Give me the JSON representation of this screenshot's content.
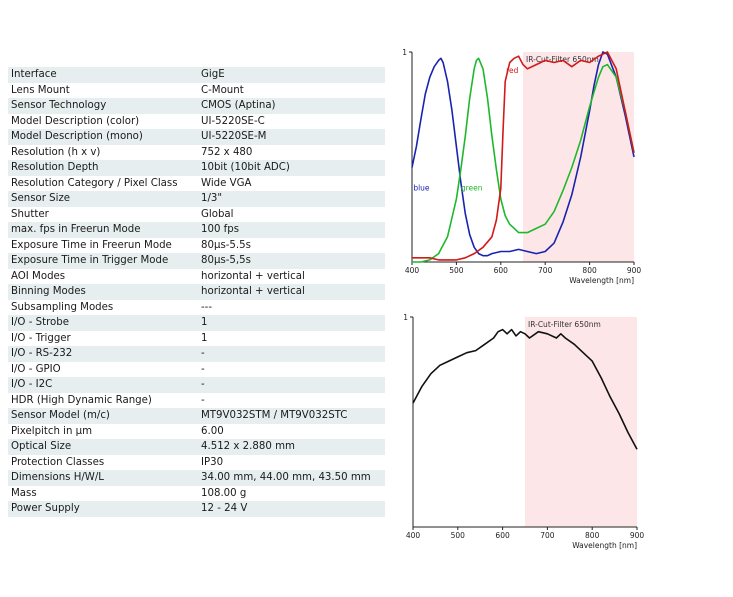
{
  "specs": [
    {
      "label": "Interface",
      "value": "GigE"
    },
    {
      "label": "Lens Mount",
      "value": "C-Mount"
    },
    {
      "label": "Sensor Technology",
      "value": "CMOS (Aptina)"
    },
    {
      "label": "Model Description (color)",
      "value": "UI-5220SE-C"
    },
    {
      "label": "Model Description (mono)",
      "value": "UI-5220SE-M"
    },
    {
      "label": "Resolution (h x v)",
      "value": "752 x 480"
    },
    {
      "label": "Resolution Depth",
      "value": "10bit (10bit ADC)"
    },
    {
      "label": "Resolution Category / Pixel Class",
      "value": "Wide VGA"
    },
    {
      "label": "Sensor Size",
      "value": "1/3\""
    },
    {
      "label": "Shutter",
      "value": "Global"
    },
    {
      "label": "max. fps in Freerun Mode",
      "value": "100 fps"
    },
    {
      "label": "Exposure Time in Freerun Mode",
      "value": "80µs-5.5s"
    },
    {
      "label": "Exposure Time in Trigger Mode",
      "value": "80µs-5,5s"
    },
    {
      "label": "AOI Modes",
      "value": "horizontal + vertical"
    },
    {
      "label": "Binning Modes",
      "value": "horizontal + vertical"
    },
    {
      "label": "Subsampling Modes",
      "value": "---"
    },
    {
      "label": "I/O - Strobe",
      "value": "1"
    },
    {
      "label": "I/O - Trigger",
      "value": "1"
    },
    {
      "label": "I/O - RS-232",
      "value": "-"
    },
    {
      "label": "I/O - GPIO",
      "value": "-"
    },
    {
      "label": "I/O - I2C",
      "value": "-"
    },
    {
      "label": "HDR (High Dynamic Range)",
      "value": "-"
    },
    {
      "label": "Sensor Model (m/c)",
      "value": "MT9V032STM / MT9V032STC"
    },
    {
      "label": "Pixelpitch in µm",
      "value": "6.00"
    },
    {
      "label": "Optical Size",
      "value": "4.512 x 2.880 mm"
    },
    {
      "label": "Protection Classes",
      "value": "IP30"
    },
    {
      "label": "Dimensions H/W/L",
      "value": "34.00 mm, 44.00 mm, 43.50 mm"
    },
    {
      "label": "Mass",
      "value": "108.00 g"
    },
    {
      "label": "Power Supply",
      "value": "12 - 24 V"
    }
  ],
  "chart_data": [
    {
      "type": "line",
      "title": "",
      "xlabel": "Wavelength [nm]",
      "ylabel": "",
      "xlim": [
        400,
        900
      ],
      "ylim": [
        0,
        1
      ],
      "x_ticks": [
        400,
        500,
        600,
        700,
        800,
        900
      ],
      "y_ticks": [
        1
      ],
      "annotation": {
        "label": "IR-Cut-Filter 650nm",
        "from": 650,
        "to": 900,
        "color": "#fde6e8"
      },
      "series": [
        {
          "name": "blue",
          "color": "#1a23b0",
          "x": [
            400,
            410,
            420,
            430,
            440,
            450,
            460,
            465,
            470,
            480,
            490,
            500,
            510,
            520,
            530,
            540,
            550,
            560,
            570,
            580,
            600,
            620,
            640,
            660,
            680,
            700,
            720,
            740,
            760,
            780,
            800,
            810,
            820,
            830,
            840,
            860,
            880,
            900
          ],
          "y": [
            0.45,
            0.55,
            0.68,
            0.8,
            0.88,
            0.93,
            0.96,
            0.97,
            0.95,
            0.86,
            0.72,
            0.55,
            0.38,
            0.23,
            0.13,
            0.07,
            0.04,
            0.03,
            0.03,
            0.04,
            0.05,
            0.05,
            0.06,
            0.05,
            0.04,
            0.05,
            0.09,
            0.19,
            0.32,
            0.5,
            0.72,
            0.84,
            0.94,
            1.0,
            0.99,
            0.88,
            0.7,
            0.5
          ]
        },
        {
          "name": "green",
          "color": "#1fb82d",
          "x": [
            400,
            420,
            440,
            460,
            480,
            500,
            510,
            520,
            530,
            540,
            545,
            550,
            560,
            570,
            580,
            590,
            600,
            610,
            620,
            640,
            660,
            680,
            700,
            720,
            740,
            760,
            780,
            800,
            820,
            830,
            840,
            860,
            880,
            900
          ],
          "y": [
            0.0,
            0.0,
            0.01,
            0.04,
            0.12,
            0.3,
            0.44,
            0.6,
            0.78,
            0.92,
            0.96,
            0.97,
            0.92,
            0.78,
            0.6,
            0.44,
            0.3,
            0.22,
            0.18,
            0.14,
            0.14,
            0.16,
            0.18,
            0.24,
            0.34,
            0.45,
            0.58,
            0.74,
            0.88,
            0.93,
            0.94,
            0.88,
            0.72,
            0.52
          ]
        },
        {
          "name": "red",
          "color": "#d11a1a",
          "x": [
            400,
            420,
            440,
            460,
            480,
            500,
            520,
            540,
            560,
            580,
            590,
            600,
            605,
            610,
            620,
            630,
            640,
            650,
            660,
            680,
            700,
            720,
            740,
            760,
            780,
            800,
            820,
            840,
            860,
            880,
            900
          ],
          "y": [
            0.02,
            0.02,
            0.02,
            0.01,
            0.01,
            0.01,
            0.02,
            0.04,
            0.07,
            0.12,
            0.2,
            0.35,
            0.62,
            0.86,
            0.95,
            0.97,
            0.98,
            0.94,
            0.92,
            0.94,
            0.96,
            0.95,
            0.96,
            0.93,
            0.96,
            0.95,
            0.98,
            1.0,
            0.92,
            0.72,
            0.52
          ]
        }
      ]
    },
    {
      "type": "line",
      "title": "",
      "xlabel": "Wavelength [nm]",
      "ylabel": "",
      "xlim": [
        400,
        900
      ],
      "ylim": [
        0,
        1
      ],
      "x_ticks": [
        400,
        500,
        600,
        700,
        800,
        900
      ],
      "y_ticks": [
        1
      ],
      "annotation": {
        "label": "IR-Cut-Filter 650nm",
        "from": 650,
        "to": 900,
        "color": "#fde6e8"
      },
      "series": [
        {
          "name": "",
          "color": "#111111",
          "x": [
            400,
            420,
            440,
            460,
            480,
            500,
            520,
            540,
            560,
            580,
            590,
            600,
            610,
            620,
            630,
            640,
            650,
            660,
            680,
            700,
            720,
            730,
            740,
            760,
            780,
            800,
            820,
            840,
            860,
            880,
            900
          ],
          "y": [
            0.59,
            0.67,
            0.73,
            0.77,
            0.79,
            0.81,
            0.83,
            0.84,
            0.87,
            0.9,
            0.93,
            0.94,
            0.92,
            0.94,
            0.91,
            0.93,
            0.92,
            0.9,
            0.93,
            0.92,
            0.9,
            0.92,
            0.9,
            0.87,
            0.83,
            0.79,
            0.71,
            0.62,
            0.54,
            0.45,
            0.37
          ]
        }
      ]
    }
  ]
}
